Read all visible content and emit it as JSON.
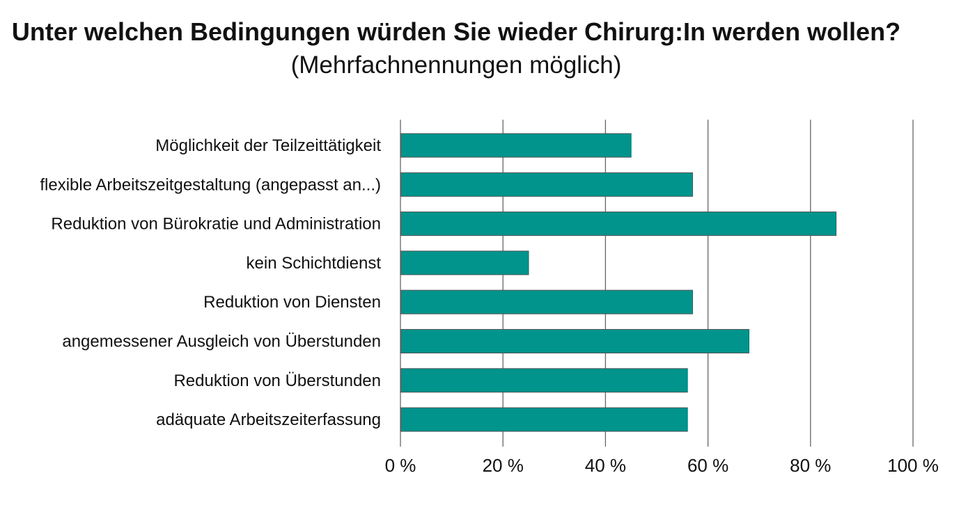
{
  "chart_data": {
    "type": "bar",
    "orientation": "horizontal",
    "title": "Unter welchen Bedingungen würden Sie wieder Chirurg:In werden wollen?",
    "subtitle": "(Mehrfachnennungen möglich)",
    "categories": [
      "Möglichkeit der Teilzeittätigkeit",
      "flexible Arbeitszeitgestaltung (angepasst an...)",
      "Reduktion von Bürokratie und Administration",
      "kein Schichtdienst",
      "Reduktion von Diensten",
      "angemessener Ausgleich von Überstunden",
      "Reduktion von Überstunden",
      "adäquate Arbeitszeiterfassung"
    ],
    "values": [
      45,
      57,
      85,
      25,
      57,
      68,
      56,
      56
    ],
    "xlim": [
      0,
      100
    ],
    "xticks": [
      0,
      20,
      40,
      60,
      80,
      100
    ],
    "xtick_labels": [
      "0 %",
      "20 %",
      "40 %",
      "60 %",
      "80 %",
      "100 %"
    ],
    "xlabel": "",
    "ylabel": "",
    "grid": "vertical",
    "legend": "none",
    "bar_color": "#00948c",
    "bar_edge_color": "#555555",
    "grid_color": "#666666"
  }
}
